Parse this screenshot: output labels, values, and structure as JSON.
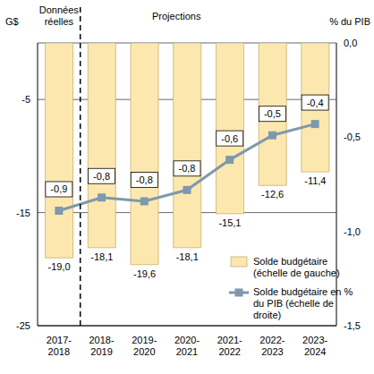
{
  "chart_data": {
    "type": "bar",
    "y_label": "G$",
    "y2_label": "% du PIB",
    "annotations": [
      "Données réelles",
      "Projections"
    ],
    "categories": [
      "2017-2018",
      "2018-2019",
      "2019-2020",
      "2020-2021",
      "2021-2022",
      "2022-2023",
      "2023-2024"
    ],
    "series": [
      {
        "name": "Solde budgétaire (échelle de gauche)",
        "type": "bar",
        "color": "#FCE8AE",
        "values": [
          -19.0,
          -18.1,
          -19.6,
          -18.1,
          -15.1,
          -12.6,
          -11.4
        ],
        "value_labels": [
          "-19,0",
          "-18,1",
          "-19,6",
          "-18,1",
          "-15,1",
          "-12,6",
          "-11,4"
        ]
      },
      {
        "name": "Solde budgétaire en % du PIB (échelle de droite)",
        "type": "line",
        "axis": "y2",
        "color": "#7E98AE",
        "marker": "square",
        "values": [
          -0.89,
          -0.82,
          -0.84,
          -0.78,
          -0.62,
          -0.49,
          -0.43
        ],
        "value_labels": [
          "-0,9",
          "-0,8",
          "-0,8",
          "-0,8",
          "-0,6",
          "-0,5",
          "-0,4"
        ]
      }
    ],
    "ylim": [
      -25,
      0
    ],
    "yticks": [
      -25,
      -15,
      -5
    ],
    "y2lim": [
      -1.5,
      0
    ],
    "y2ticks": [
      {
        "value": -1.5,
        "label": "-1,5"
      },
      {
        "value": -1.0,
        "label": "-1,0"
      },
      {
        "value": -0.5,
        "label": "-0,5"
      },
      {
        "value": 0,
        "label": "0,0"
      }
    ],
    "grid": true,
    "data_labels": true,
    "legend": "lower right"
  }
}
